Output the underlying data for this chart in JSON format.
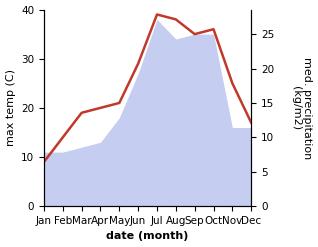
{
  "months": [
    "Jan",
    "Feb",
    "Mar",
    "Apr",
    "May",
    "Jun",
    "Jul",
    "Aug",
    "Sep",
    "Oct",
    "Nov",
    "Dec"
  ],
  "temp_max": [
    9,
    14,
    19,
    20,
    21,
    29,
    39,
    38,
    35,
    36,
    25,
    17
  ],
  "precipitation": [
    11,
    11,
    12,
    13,
    18,
    27,
    38,
    34,
    35,
    35,
    16,
    16
  ],
  "temp_color": "#c0392b",
  "precip_fill_color": "#c5cdf0",
  "ylabel_left": "max temp (C)",
  "ylabel_right": "med. precipitation\n(kg/m2)",
  "xlabel": "date (month)",
  "ylim_left": [
    0,
    40
  ],
  "ylim_right": [
    0,
    28.57
  ],
  "yticks_left": [
    0,
    10,
    20,
    30,
    40
  ],
  "yticks_right": [
    0,
    5,
    10,
    15,
    20,
    25
  ],
  "background_color": "#ffffff",
  "temp_linewidth": 1.8,
  "xlabel_fontsize": 8,
  "ylabel_fontsize": 8,
  "tick_fontsize": 7.5
}
